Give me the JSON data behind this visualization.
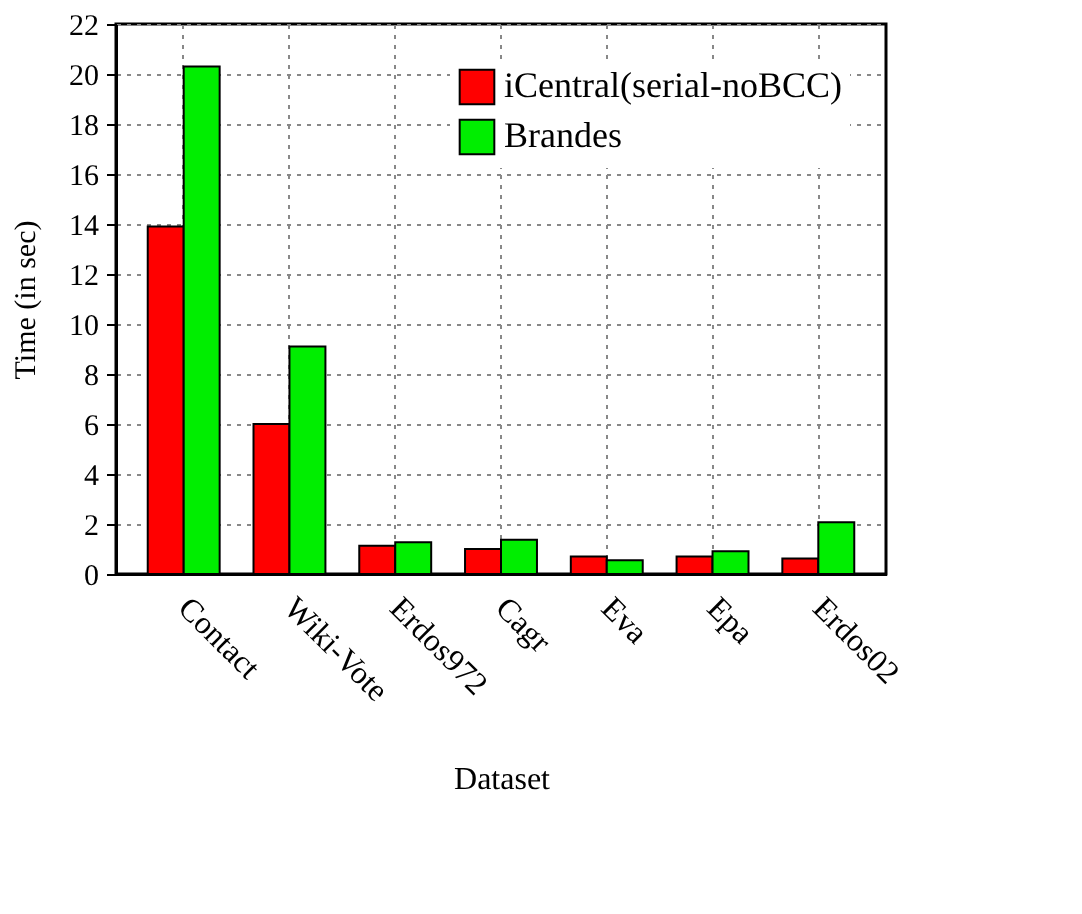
{
  "chart_data": {
    "type": "bar",
    "xlabel": "Dataset",
    "ylabel": "Time (in sec)",
    "categories": [
      "Contact",
      "Wiki-Vote",
      "Erdos972",
      "Cagr",
      "Eva",
      "Epa",
      "Erdos02"
    ],
    "series": [
      {
        "name": "iCentral(serial-noBCC)",
        "color": "#ff0000",
        "values": [
          13.9,
          6.0,
          1.13,
          1.0,
          0.7,
          0.7,
          0.62
        ]
      },
      {
        "name": "Brandes",
        "color": "#00ee00",
        "values": [
          20.3,
          9.1,
          1.27,
          1.37,
          0.55,
          0.91,
          2.07
        ]
      }
    ],
    "ylim": [
      0,
      22
    ],
    "yticks": [
      0,
      2,
      4,
      6,
      8,
      10,
      12,
      14,
      16,
      18,
      20,
      22
    ],
    "grid": true,
    "legend": "top right"
  }
}
